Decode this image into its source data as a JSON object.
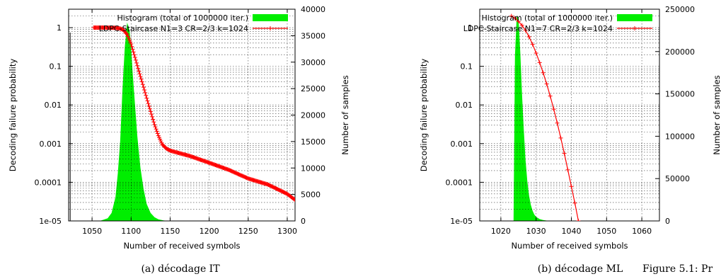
{
  "chart_data": [
    {
      "type": "line",
      "caption": "(a) décodage IT",
      "xlabel": "Number of received symbols",
      "ylabel": "Decoding failure probability",
      "y2label": "Number of samples",
      "xlim": [
        1020,
        1310
      ],
      "ylim": [
        1e-05,
        3
      ],
      "y_scale": "log",
      "y2lim": [
        0,
        40000
      ],
      "xticks": [
        "1050",
        "1100",
        "1150",
        "1200",
        "1250",
        "1300"
      ],
      "yticks": [
        "1",
        "0.1",
        "0.01",
        "0.001",
        "0.0001",
        "1e-05"
      ],
      "y2ticks": [
        "40000",
        "35000",
        "30000",
        "25000",
        "20000",
        "15000",
        "10000",
        "5000",
        "0"
      ],
      "grid": true,
      "legend_position": "top-right",
      "vertical_line_x": 1022,
      "series": [
        {
          "name": "Histogram (total of 1000000 iter.)",
          "axis": "right",
          "kind": "area",
          "color": "#00ee00",
          "x": [
            1060,
            1070,
            1075,
            1080,
            1083,
            1086,
            1089,
            1092,
            1095,
            1098,
            1100,
            1102,
            1105,
            1108,
            1112,
            1116,
            1120,
            1125,
            1130,
            1135,
            1142,
            1150
          ],
          "y": [
            0,
            500,
            1500,
            4500,
            9000,
            15000,
            25000,
            33000,
            37500,
            36000,
            33000,
            28000,
            22000,
            16000,
            10000,
            6000,
            3200,
            1500,
            700,
            300,
            80,
            0
          ]
        },
        {
          "name": "LDPC-Staircase N1=3 CR=2/3 k=1024",
          "axis": "left",
          "kind": "line",
          "color": "#ff0000",
          "x": [
            1052,
            1070,
            1080,
            1086,
            1090,
            1095,
            1100,
            1105,
            1110,
            1115,
            1120,
            1125,
            1130,
            1135,
            1140,
            1145,
            1150,
            1160,
            1175,
            1200,
            1225,
            1250,
            1275,
            1300,
            1310
          ],
          "y": [
            1.0,
            1.0,
            0.99,
            0.95,
            0.88,
            0.66,
            0.38,
            0.17,
            0.075,
            0.034,
            0.015,
            0.0068,
            0.0031,
            0.0016,
            0.00095,
            0.00075,
            0.00066,
            0.00058,
            0.00048,
            0.00032,
            0.00021,
            0.000125,
            8.8e-05,
            5e-05,
            3.5e-05
          ]
        }
      ]
    },
    {
      "type": "line",
      "caption": "(b) décodage ML",
      "xlabel": "Number of received symbols",
      "ylabel": "Decoding failure probability",
      "y2label": "Number of samples",
      "xlim": [
        1014,
        1065
      ],
      "ylim": [
        1e-05,
        3
      ],
      "y_scale": "log",
      "y2lim": [
        0,
        250000
      ],
      "xticks": [
        "1020",
        "1030",
        "1040",
        "1050",
        "1060"
      ],
      "yticks": [
        "1",
        "0.1",
        "0.01",
        "0.001",
        "0.0001",
        "1e-05"
      ],
      "y2ticks": [
        "250000",
        "200000",
        "150000",
        "100000",
        "50000",
        "0"
      ],
      "grid": true,
      "legend_position": "top-right",
      "series": [
        {
          "name": "Histogram (total of 1000000 iter.)",
          "axis": "right",
          "kind": "area",
          "color": "#00ee00",
          "x": [
            1023.6,
            1024,
            1024.5,
            1025,
            1025.5,
            1026,
            1026.5,
            1027,
            1027.5,
            1028,
            1028.5,
            1029,
            1029.5,
            1030,
            1031,
            1032,
            1033,
            1034,
            1036
          ],
          "y": [
            0,
            195000,
            242000,
            240000,
            200000,
            150000,
            108000,
            72000,
            47000,
            30000,
            19000,
            12000,
            7500,
            4800,
            2200,
            1000,
            450,
            200,
            0
          ]
        },
        {
          "name": "LDPC-Staircase N1=7 CR=2/3 k=1024",
          "axis": "left",
          "kind": "line",
          "color": "#ff0000",
          "x": [
            1023,
            1024,
            1025,
            1026,
            1027,
            1028,
            1029,
            1030,
            1031,
            1032,
            1033,
            1034,
            1035,
            1036,
            1037,
            1038,
            1039,
            1040,
            1041,
            1042
          ],
          "y": [
            2.0,
            1.75,
            1.45,
            1.15,
            0.85,
            0.58,
            0.37,
            0.22,
            0.125,
            0.068,
            0.035,
            0.017,
            0.0078,
            0.0034,
            0.0014,
            0.00056,
            0.00021,
            7.8e-05,
            2.9e-05,
            1e-05
          ]
        }
      ]
    }
  ],
  "figure_caption": "Figure 5.1: Pr"
}
